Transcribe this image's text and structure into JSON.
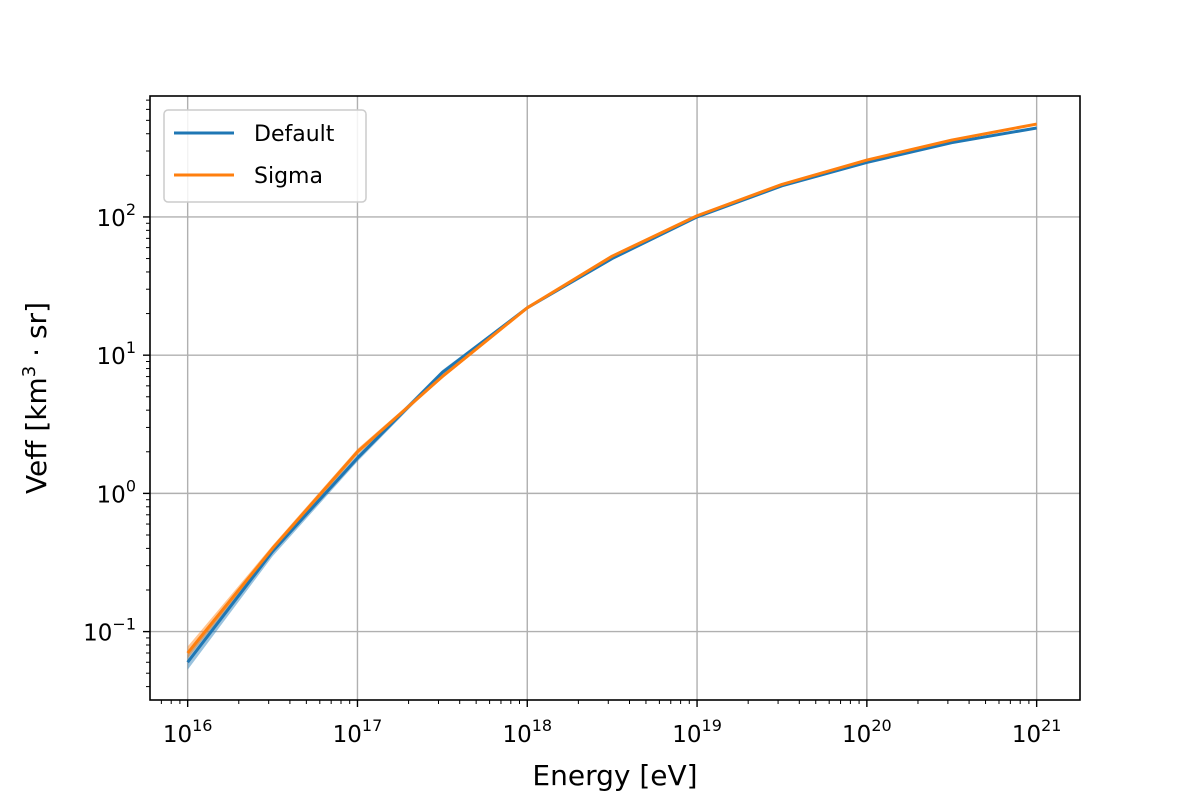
{
  "chart_data": {
    "type": "line",
    "title": "",
    "xlabel": "Energy [eV]",
    "ylabel": {
      "prefix": "Veff [km",
      "sup": "3",
      "suffix": " · sr]"
    },
    "xscale": "log",
    "yscale": "log",
    "xlim": [
      6000000000000000.0,
      1.8e+21
    ],
    "ylim": [
      0.032,
      750
    ],
    "grid": true,
    "legend_placement": "upper-left",
    "x_ticks": [
      {
        "base": "10",
        "exp": "16",
        "value": 1e+16
      },
      {
        "base": "10",
        "exp": "17",
        "value": 1e+17
      },
      {
        "base": "10",
        "exp": "18",
        "value": 1e+18
      },
      {
        "base": "10",
        "exp": "19",
        "value": 1e+19
      },
      {
        "base": "10",
        "exp": "20",
        "value": 1e+20
      },
      {
        "base": "10",
        "exp": "21",
        "value": 1e+21
      }
    ],
    "y_ticks": [
      {
        "base": "10",
        "exp": "−1",
        "value": 0.1
      },
      {
        "base": "10",
        "exp": "0",
        "value": 1
      },
      {
        "base": "10",
        "exp": "1",
        "value": 10
      },
      {
        "base": "10",
        "exp": "2",
        "value": 100
      }
    ],
    "x": [
      1e+16,
      3.16e+16,
      1e+17,
      3.16e+17,
      1e+18,
      3.16e+18,
      1e+19,
      3.16e+19,
      1e+20,
      3.16e+20,
      1e+21
    ],
    "series": [
      {
        "name": "Default",
        "color": "#1f77b4",
        "values": [
          0.06,
          0.38,
          1.8,
          7.5,
          22,
          50,
          100,
          168,
          248,
          345,
          440
        ],
        "band_low": [
          0.053,
          0.35,
          1.7,
          7.2,
          21.5,
          49,
          99,
          166,
          245,
          340,
          432
        ],
        "band_high": [
          0.068,
          0.41,
          1.9,
          7.8,
          22.5,
          51,
          101,
          170,
          251,
          350,
          448
        ]
      },
      {
        "name": "Sigma",
        "color": "#ff7f0e",
        "values": [
          0.07,
          0.4,
          2.0,
          7.0,
          22,
          52,
          102,
          172,
          258,
          360,
          470
        ],
        "band_low": [
          0.064,
          0.38,
          1.9,
          6.8,
          21.5,
          51,
          101,
          170,
          255,
          355,
          462
        ],
        "band_high": [
          0.078,
          0.42,
          2.1,
          7.2,
          22.5,
          53,
          103,
          174,
          262,
          365,
          478
        ]
      }
    ]
  }
}
